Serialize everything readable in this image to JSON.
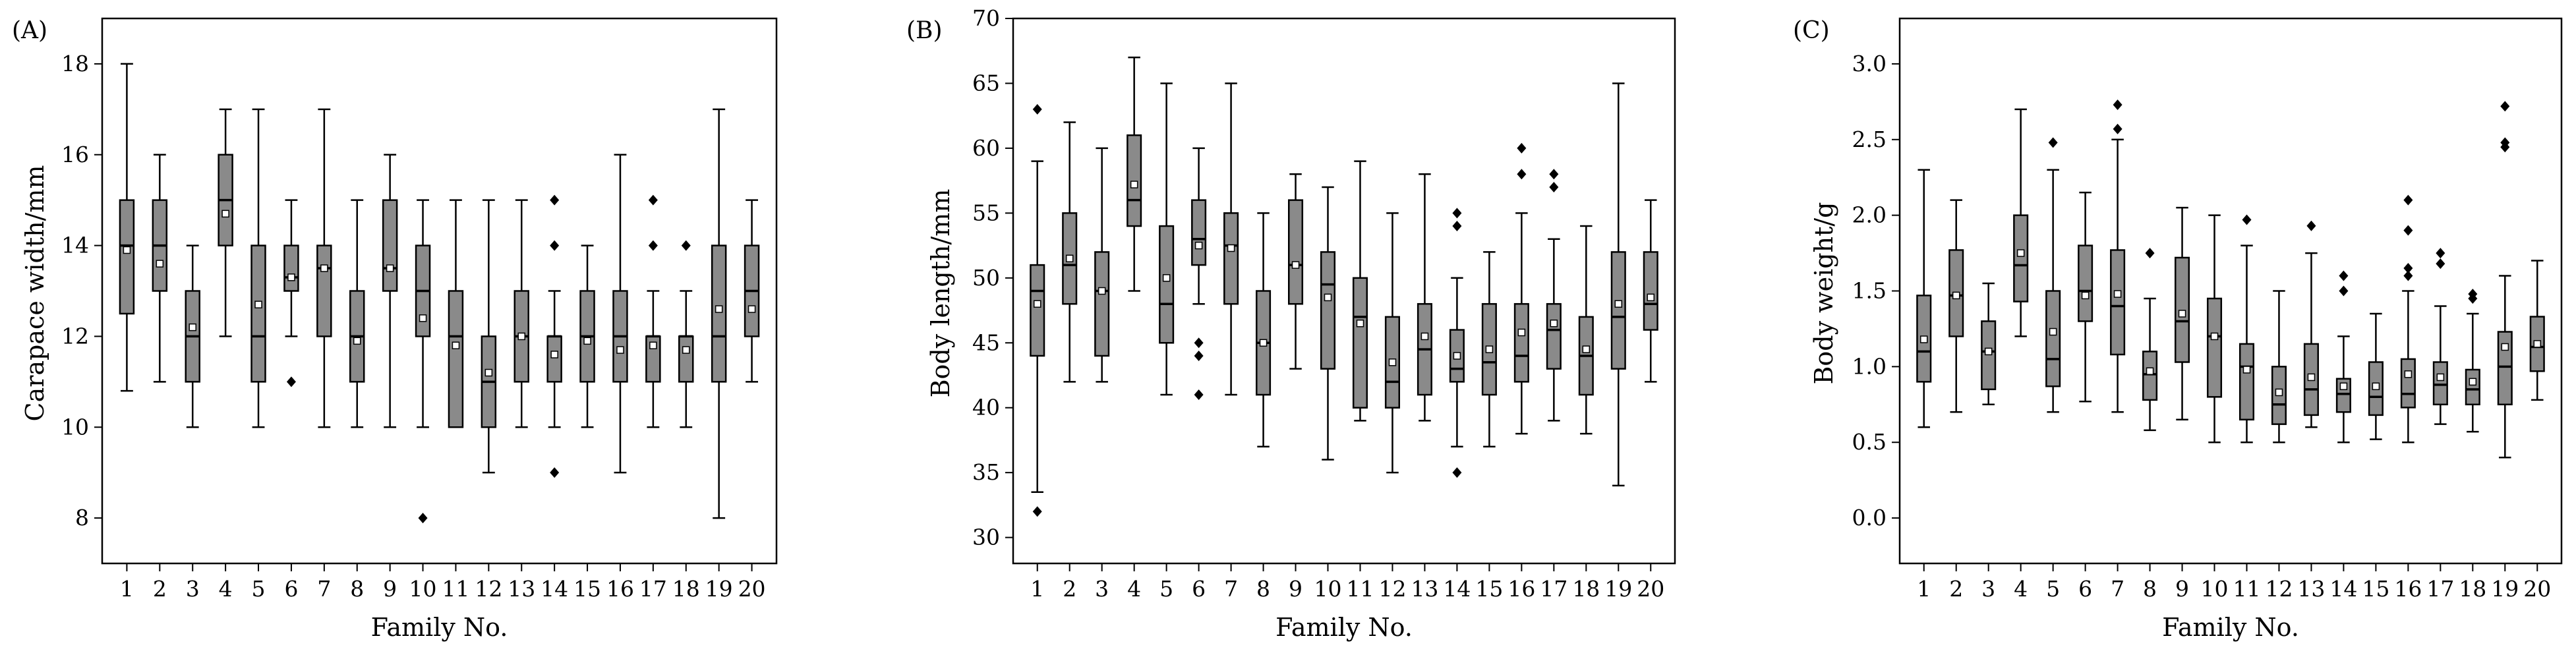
{
  "chart_data": [
    {
      "type": "box",
      "panel_label": "(A)",
      "title": "",
      "xlabel": "Family No.",
      "ylabel": "Carapace width/mm",
      "ylim": [
        7,
        19
      ],
      "yticks": [
        8,
        10,
        12,
        14,
        16,
        18
      ],
      "categories": [
        "1",
        "2",
        "3",
        "4",
        "5",
        "6",
        "7",
        "8",
        "9",
        "10",
        "11",
        "12",
        "13",
        "14",
        "15",
        "16",
        "17",
        "18",
        "19",
        "20"
      ],
      "boxes": [
        {
          "min": 10.8,
          "q1": 12.5,
          "median": 14,
          "q3": 15,
          "max": 18,
          "mean": 13.9,
          "outliers": []
        },
        {
          "min": 11,
          "q1": 13,
          "median": 14,
          "q3": 15,
          "max": 16,
          "mean": 13.6,
          "outliers": []
        },
        {
          "min": 10,
          "q1": 11,
          "median": 12,
          "q3": 13,
          "max": 14,
          "mean": 12.2,
          "outliers": []
        },
        {
          "min": 12,
          "q1": 14,
          "median": 15,
          "q3": 16,
          "max": 17,
          "mean": 14.7,
          "outliers": []
        },
        {
          "min": 10,
          "q1": 11,
          "median": 12,
          "q3": 14,
          "max": 17,
          "mean": 12.7,
          "outliers": []
        },
        {
          "min": 12,
          "q1": 13,
          "median": 13.3,
          "q3": 14,
          "max": 15,
          "mean": 13.3,
          "outliers": [
            11
          ]
        },
        {
          "min": 10,
          "q1": 12,
          "median": 13.5,
          "q3": 14,
          "max": 17,
          "mean": 13.5,
          "outliers": []
        },
        {
          "min": 10,
          "q1": 11,
          "median": 12,
          "q3": 13,
          "max": 15,
          "mean": 11.9,
          "outliers": []
        },
        {
          "min": 10,
          "q1": 13,
          "median": 13.5,
          "q3": 15,
          "max": 16,
          "mean": 13.5,
          "outliers": []
        },
        {
          "min": 10,
          "q1": 12,
          "median": 13,
          "q3": 14,
          "max": 15,
          "mean": 12.4,
          "outliers": [
            8
          ]
        },
        {
          "min": 10,
          "q1": 10,
          "median": 12,
          "q3": 13,
          "max": 15,
          "mean": 11.8,
          "outliers": []
        },
        {
          "min": 9,
          "q1": 10,
          "median": 11,
          "q3": 12,
          "max": 15,
          "mean": 11.2,
          "outliers": []
        },
        {
          "min": 10,
          "q1": 11,
          "median": 12,
          "q3": 13,
          "max": 15,
          "mean": 12,
          "outliers": []
        },
        {
          "min": 10,
          "q1": 11,
          "median": 12,
          "q3": 12,
          "max": 13,
          "mean": 11.6,
          "outliers": [
            15,
            14,
            9
          ]
        },
        {
          "min": 10,
          "q1": 11,
          "median": 12,
          "q3": 13,
          "max": 14,
          "mean": 11.9,
          "outliers": []
        },
        {
          "min": 9,
          "q1": 11,
          "median": 12,
          "q3": 13,
          "max": 16,
          "mean": 11.7,
          "outliers": []
        },
        {
          "min": 10,
          "q1": 11,
          "median": 12,
          "q3": 12,
          "max": 13,
          "mean": 11.8,
          "outliers": [
            15,
            14
          ]
        },
        {
          "min": 10,
          "q1": 11,
          "median": 12,
          "q3": 12,
          "max": 13,
          "mean": 11.7,
          "outliers": [
            14
          ]
        },
        {
          "min": 8,
          "q1": 11,
          "median": 12,
          "q3": 14,
          "max": 17,
          "mean": 12.6,
          "outliers": []
        },
        {
          "min": 11,
          "q1": 12,
          "median": 13,
          "q3": 14,
          "max": 15,
          "mean": 12.6,
          "outliers": []
        }
      ]
    },
    {
      "type": "box",
      "panel_label": "(B)",
      "title": "",
      "xlabel": "Family No.",
      "ylabel": "Body length/mm",
      "ylim": [
        28,
        70
      ],
      "yticks": [
        30,
        35,
        40,
        45,
        50,
        55,
        60,
        65,
        70
      ],
      "categories": [
        "1",
        "2",
        "3",
        "4",
        "5",
        "6",
        "7",
        "8",
        "9",
        "10",
        "11",
        "12",
        "13",
        "14",
        "15",
        "16",
        "17",
        "18",
        "19",
        "20"
      ],
      "boxes": [
        {
          "min": 33.5,
          "q1": 44,
          "median": 49,
          "q3": 51,
          "max": 59,
          "mean": 48,
          "outliers": [
            63,
            32
          ]
        },
        {
          "min": 42,
          "q1": 48,
          "median": 51,
          "q3": 55,
          "max": 62,
          "mean": 51.5,
          "outliers": []
        },
        {
          "min": 42,
          "q1": 44,
          "median": 49,
          "q3": 52,
          "max": 60,
          "mean": 49,
          "outliers": []
        },
        {
          "min": 49,
          "q1": 54,
          "median": 56,
          "q3": 61,
          "max": 67,
          "mean": 57.2,
          "outliers": []
        },
        {
          "min": 41,
          "q1": 45,
          "median": 48,
          "q3": 54,
          "max": 65,
          "mean": 50,
          "outliers": []
        },
        {
          "min": 48,
          "q1": 51,
          "median": 53,
          "q3": 56,
          "max": 60,
          "mean": 52.5,
          "outliers": [
            45,
            44,
            41
          ]
        },
        {
          "min": 41,
          "q1": 48,
          "median": 52.5,
          "q3": 55,
          "max": 65,
          "mean": 52.3,
          "outliers": []
        },
        {
          "min": 37,
          "q1": 41,
          "median": 45,
          "q3": 49,
          "max": 55,
          "mean": 45,
          "outliers": []
        },
        {
          "min": 43,
          "q1": 48,
          "median": 51,
          "q3": 56,
          "max": 58,
          "mean": 51,
          "outliers": []
        },
        {
          "min": 36,
          "q1": 43,
          "median": 49.5,
          "q3": 52,
          "max": 57,
          "mean": 48.5,
          "outliers": []
        },
        {
          "min": 39,
          "q1": 40,
          "median": 47,
          "q3": 50,
          "max": 59,
          "mean": 46.5,
          "outliers": []
        },
        {
          "min": 35,
          "q1": 40,
          "median": 42,
          "q3": 47,
          "max": 55,
          "mean": 43.5,
          "outliers": []
        },
        {
          "min": 39,
          "q1": 41,
          "median": 44.5,
          "q3": 48,
          "max": 58,
          "mean": 45.5,
          "outliers": []
        },
        {
          "min": 37,
          "q1": 42,
          "median": 43,
          "q3": 46,
          "max": 50,
          "mean": 44,
          "outliers": [
            55,
            54,
            35
          ]
        },
        {
          "min": 37,
          "q1": 41,
          "median": 43.5,
          "q3": 48,
          "max": 52,
          "mean": 44.5,
          "outliers": []
        },
        {
          "min": 38,
          "q1": 42,
          "median": 44,
          "q3": 48,
          "max": 55,
          "mean": 45.8,
          "outliers": [
            60,
            58
          ]
        },
        {
          "min": 39,
          "q1": 43,
          "median": 46,
          "q3": 48,
          "max": 53,
          "mean": 46.5,
          "outliers": [
            58,
            57
          ]
        },
        {
          "min": 38,
          "q1": 41,
          "median": 44,
          "q3": 47,
          "max": 54,
          "mean": 44.5,
          "outliers": []
        },
        {
          "min": 34,
          "q1": 43,
          "median": 47,
          "q3": 52,
          "max": 65,
          "mean": 48,
          "outliers": []
        },
        {
          "min": 42,
          "q1": 46,
          "median": 48,
          "q3": 52,
          "max": 56,
          "mean": 48.5,
          "outliers": []
        }
      ]
    },
    {
      "type": "box",
      "panel_label": "(C)",
      "title": "",
      "xlabel": "Family No.",
      "ylabel": "Body weight/g",
      "ylim": [
        -0.3,
        3.3
      ],
      "yticks": [
        0.0,
        0.5,
        1.0,
        1.5,
        2.0,
        2.5,
        3.0
      ],
      "ytick_labels": [
        "0.0",
        "0.5",
        "1.0",
        "1.5",
        "2.0",
        "2.5",
        "3.0"
      ],
      "categories": [
        "1",
        "2",
        "3",
        "4",
        "5",
        "6",
        "7",
        "8",
        "9",
        "10",
        "11",
        "12",
        "13",
        "14",
        "15",
        "16",
        "17",
        "18",
        "19",
        "20"
      ],
      "boxes": [
        {
          "min": 0.6,
          "q1": 0.9,
          "median": 1.1,
          "q3": 1.47,
          "max": 2.3,
          "mean": 1.18,
          "outliers": []
        },
        {
          "min": 0.7,
          "q1": 1.2,
          "median": 1.47,
          "q3": 1.77,
          "max": 2.1,
          "mean": 1.47,
          "outliers": []
        },
        {
          "min": 0.75,
          "q1": 0.85,
          "median": 1.1,
          "q3": 1.3,
          "max": 1.55,
          "mean": 1.1,
          "outliers": []
        },
        {
          "min": 1.2,
          "q1": 1.43,
          "median": 1.67,
          "q3": 2.0,
          "max": 2.7,
          "mean": 1.75,
          "outliers": []
        },
        {
          "min": 0.7,
          "q1": 0.87,
          "median": 1.05,
          "q3": 1.5,
          "max": 2.3,
          "mean": 1.23,
          "outliers": [
            2.48
          ]
        },
        {
          "min": 0.77,
          "q1": 1.3,
          "median": 1.5,
          "q3": 1.8,
          "max": 2.15,
          "mean": 1.47,
          "outliers": []
        },
        {
          "min": 0.7,
          "q1": 1.08,
          "median": 1.4,
          "q3": 1.77,
          "max": 2.5,
          "mean": 1.48,
          "outliers": [
            2.73,
            2.57
          ]
        },
        {
          "min": 0.58,
          "q1": 0.78,
          "median": 0.95,
          "q3": 1.1,
          "max": 1.45,
          "mean": 0.97,
          "outliers": [
            1.75
          ]
        },
        {
          "min": 0.65,
          "q1": 1.03,
          "median": 1.3,
          "q3": 1.72,
          "max": 2.05,
          "mean": 1.35,
          "outliers": []
        },
        {
          "min": 0.5,
          "q1": 0.8,
          "median": 1.2,
          "q3": 1.45,
          "max": 2.0,
          "mean": 1.2,
          "outliers": []
        },
        {
          "min": 0.5,
          "q1": 0.65,
          "median": 1.0,
          "q3": 1.15,
          "max": 1.8,
          "mean": 0.98,
          "outliers": [
            1.97
          ]
        },
        {
          "min": 0.5,
          "q1": 0.62,
          "median": 0.75,
          "q3": 1.0,
          "max": 1.5,
          "mean": 0.83,
          "outliers": []
        },
        {
          "min": 0.6,
          "q1": 0.68,
          "median": 0.85,
          "q3": 1.15,
          "max": 1.75,
          "mean": 0.93,
          "outliers": [
            1.93
          ]
        },
        {
          "min": 0.5,
          "q1": 0.7,
          "median": 0.82,
          "q3": 0.92,
          "max": 1.2,
          "mean": 0.87,
          "outliers": [
            1.6,
            1.5
          ]
        },
        {
          "min": 0.52,
          "q1": 0.68,
          "median": 0.8,
          "q3": 1.03,
          "max": 1.35,
          "mean": 0.87,
          "outliers": []
        },
        {
          "min": 0.5,
          "q1": 0.73,
          "median": 0.82,
          "q3": 1.05,
          "max": 1.5,
          "mean": 0.95,
          "outliers": [
            2.1,
            1.9,
            1.65,
            1.6
          ]
        },
        {
          "min": 0.62,
          "q1": 0.75,
          "median": 0.88,
          "q3": 1.03,
          "max": 1.4,
          "mean": 0.93,
          "outliers": [
            1.75,
            1.68
          ]
        },
        {
          "min": 0.57,
          "q1": 0.75,
          "median": 0.85,
          "q3": 0.98,
          "max": 1.35,
          "mean": 0.9,
          "outliers": [
            1.48,
            1.45
          ]
        },
        {
          "min": 0.4,
          "q1": 0.75,
          "median": 1.0,
          "q3": 1.23,
          "max": 1.6,
          "mean": 1.13,
          "outliers": [
            2.72,
            2.48,
            2.45
          ]
        },
        {
          "min": 0.78,
          "q1": 0.97,
          "median": 1.13,
          "q3": 1.33,
          "max": 1.7,
          "mean": 1.15,
          "outliers": []
        }
      ]
    }
  ],
  "style": {
    "box_fill": "#8a8a8a",
    "box_stroke": "#000000",
    "outlier_color": "#000000",
    "mean_marker_fill": "#ffffff"
  }
}
